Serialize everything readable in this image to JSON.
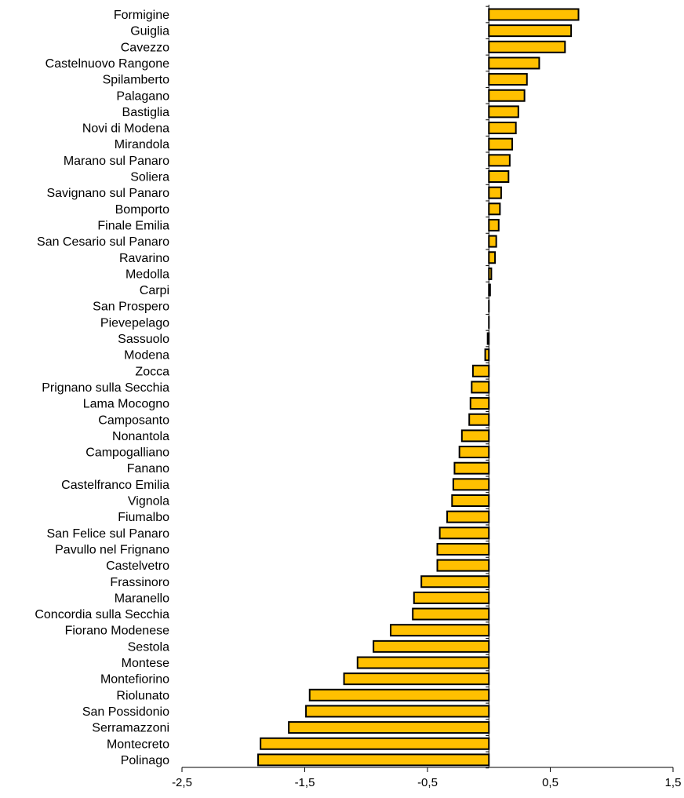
{
  "chart_data": {
    "type": "bar",
    "orientation": "horizontal",
    "title": "",
    "xlabel": "",
    "ylabel": "",
    "xlim": [
      -2.5,
      1.5
    ],
    "x_ticks": [
      -2.5,
      -1.5,
      -0.5,
      0.5,
      1.5
    ],
    "x_tick_labels": [
      "-2,5",
      "-1,5",
      "-0,5",
      "0,5",
      "1,5"
    ],
    "grid": false,
    "legend": "none",
    "bar_color": "#FFC000",
    "bar_edge_color": "#000000",
    "categories": [
      "Formigine",
      "Guiglia",
      "Cavezzo",
      "Castelnuovo Rangone",
      "Spilamberto",
      "Palagano",
      "Bastiglia",
      "Novi di Modena",
      "Mirandola",
      "Marano sul Panaro",
      "Soliera",
      "Savignano sul Panaro",
      "Bomporto",
      "Finale Emilia",
      "San Cesario sul Panaro",
      "Ravarino",
      "Medolla",
      "Carpi",
      "San Prospero",
      "Pievepelago",
      "Sassuolo",
      "Modena",
      "Zocca",
      "Prignano sulla Secchia",
      "Lama Mocogno",
      "Camposanto",
      "Nonantola",
      "Campogalliano",
      "Fanano",
      "Castelfranco Emilia",
      "Vignola",
      "Fiumalbo",
      "San Felice sul Panaro",
      "Pavullo nel Frignano",
      "Castelvetro",
      "Frassinoro",
      "Maranello",
      "Concordia sulla Secchia",
      "Fiorano Modenese",
      "Sestola",
      "Montese",
      "Montefiorino",
      "Riolunato",
      "San Possidonio",
      "Serramazzoni",
      "Montecreto",
      "Polinago"
    ],
    "values": [
      0.73,
      0.67,
      0.62,
      0.41,
      0.31,
      0.29,
      0.24,
      0.22,
      0.19,
      0.17,
      0.16,
      0.1,
      0.09,
      0.08,
      0.06,
      0.05,
      0.02,
      0.01,
      0.0,
      0.0,
      -0.01,
      -0.03,
      -0.13,
      -0.14,
      -0.15,
      -0.16,
      -0.22,
      -0.24,
      -0.28,
      -0.29,
      -0.3,
      -0.34,
      -0.4,
      -0.42,
      -0.42,
      -0.55,
      -0.61,
      -0.62,
      -0.8,
      -0.94,
      -1.07,
      -1.18,
      -1.46,
      -1.49,
      -1.63,
      -1.86,
      -1.88
    ]
  }
}
